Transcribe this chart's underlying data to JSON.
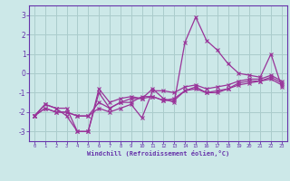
{
  "xlabel": "Windchill (Refroidissement éolien,°C)",
  "background_color": "#cce8e8",
  "grid_color": "#aacccc",
  "line_color": "#993399",
  "spine_color": "#6633aa",
  "tick_color": "#6633aa",
  "xlim": [
    -0.5,
    23.5
  ],
  "ylim": [
    -3.5,
    3.5
  ],
  "yticks": [
    -3,
    -2,
    -1,
    0,
    1,
    2,
    3
  ],
  "xticks": [
    0,
    1,
    2,
    3,
    4,
    5,
    6,
    7,
    8,
    9,
    10,
    11,
    12,
    13,
    14,
    15,
    16,
    17,
    18,
    19,
    20,
    21,
    22,
    23
  ],
  "series": [
    [
      -2.2,
      -1.6,
      -1.8,
      -1.8,
      -3.0,
      -3.0,
      -0.8,
      -1.5,
      -1.3,
      -1.2,
      -1.3,
      -0.8,
      -1.3,
      -1.5,
      1.6,
      2.9,
      1.7,
      1.2,
      0.5,
      0.0,
      -0.1,
      -0.2,
      1.0,
      -0.7
    ],
    [
      -2.2,
      -1.6,
      -1.8,
      -2.2,
      -3.0,
      -3.0,
      -1.0,
      -1.8,
      -1.5,
      -1.5,
      -1.2,
      -1.2,
      -1.4,
      -1.4,
      -0.9,
      -0.8,
      -1.0,
      -1.0,
      -0.8,
      -0.6,
      -0.5,
      -0.4,
      -0.3,
      -0.6
    ],
    [
      -2.2,
      -1.8,
      -2.0,
      -2.0,
      -2.2,
      -2.2,
      -1.5,
      -1.8,
      -1.5,
      -1.3,
      -1.3,
      -1.2,
      -1.4,
      -1.3,
      -0.9,
      -0.7,
      -1.0,
      -0.9,
      -0.8,
      -0.5,
      -0.4,
      -0.4,
      -0.2,
      -0.5
    ],
    [
      -2.2,
      -1.8,
      -2.0,
      -2.0,
      -2.2,
      -2.2,
      -1.8,
      -2.0,
      -1.8,
      -1.6,
      -2.3,
      -0.9,
      -0.9,
      -1.0,
      -0.7,
      -0.6,
      -0.8,
      -0.7,
      -0.6,
      -0.4,
      -0.3,
      -0.3,
      -0.1,
      -0.4
    ]
  ]
}
